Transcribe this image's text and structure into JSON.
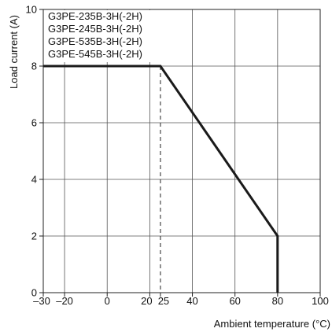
{
  "chart_data": {
    "type": "line",
    "xlabel": "Ambient temperature (°C)",
    "ylabel": "Load current (A)",
    "xlim": [
      -30,
      100
    ],
    "ylim": [
      0,
      10
    ],
    "grid": true,
    "x_ticks": [
      {
        "value": -30,
        "label": "–30"
      },
      {
        "value": -20,
        "label": "–20"
      },
      {
        "value": 0,
        "label": "0"
      },
      {
        "value": 20,
        "label": "20"
      },
      {
        "value": 25,
        "label": "25"
      },
      {
        "value": 40,
        "label": "40"
      },
      {
        "value": 60,
        "label": "60"
      },
      {
        "value": 80,
        "label": "80"
      },
      {
        "value": 100,
        "label": "100"
      }
    ],
    "y_ticks": [
      {
        "value": 0,
        "label": "0"
      },
      {
        "value": 2,
        "label": "2"
      },
      {
        "value": 4,
        "label": "4"
      },
      {
        "value": 6,
        "label": "6"
      },
      {
        "value": 8,
        "label": "8"
      },
      {
        "value": 10,
        "label": "10"
      }
    ],
    "legend_entries": [
      "G3PE-235B-3H(-2H)",
      "G3PE-245B-3H(-2H)",
      "G3PE-535B-3H(-2H)",
      "G3PE-545B-3H(-2H)"
    ],
    "legend_placement": "top-left",
    "series": [
      {
        "x": [
          -30,
          25,
          80,
          80
        ],
        "y": [
          8,
          8,
          2,
          0
        ]
      }
    ],
    "reference_lines": [
      {
        "x": 25,
        "y_from": 0,
        "y_to": 8,
        "style": "dashed"
      }
    ]
  },
  "colors": {
    "line": "#1a1a1a",
    "grid": "#555555",
    "axis": "#222222",
    "background": "#ffffff"
  }
}
